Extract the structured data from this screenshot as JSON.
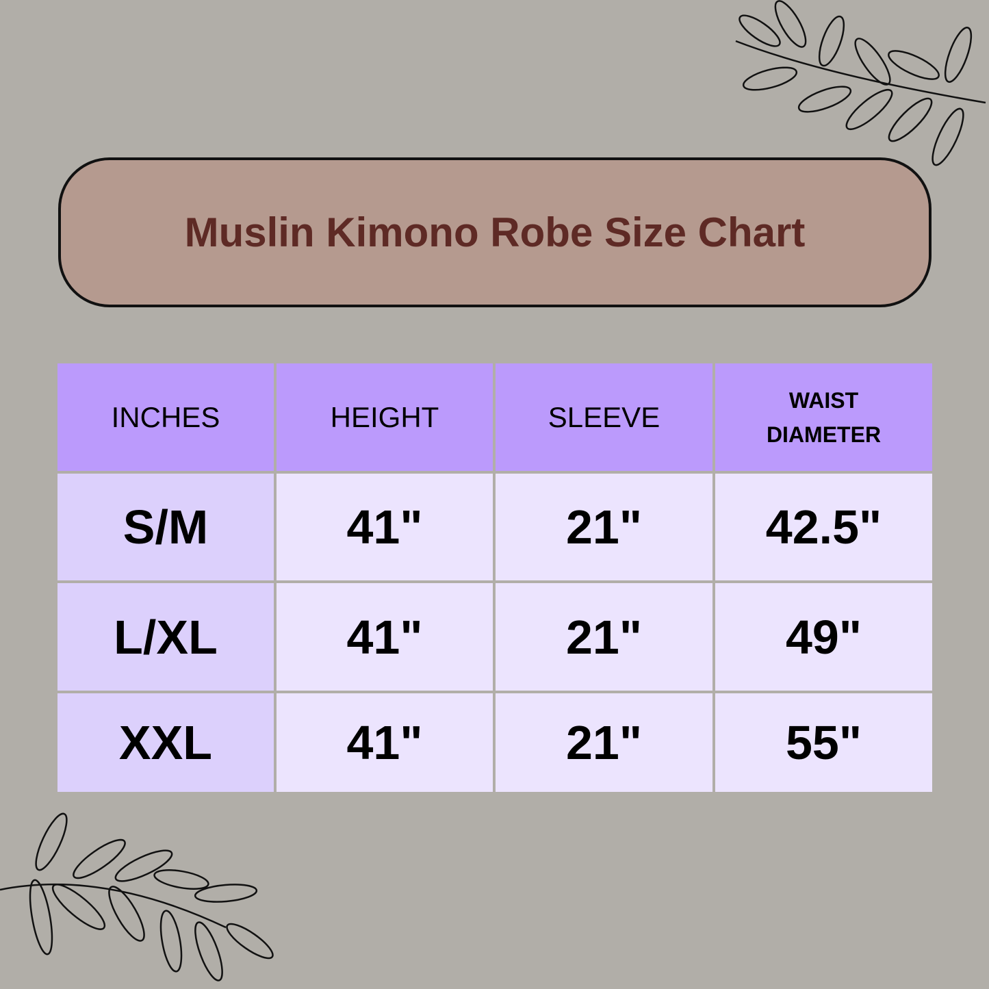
{
  "title": "Muslin Kimono Robe Size Chart",
  "table": {
    "headers": [
      "INCHES",
      "HEIGHT",
      "SLEEVE",
      "WAIST DIAMETER"
    ],
    "rows": [
      [
        "S/M",
        "41\"",
        "21\"",
        "42.5\""
      ],
      [
        "L/XL",
        "41\"",
        "21\"",
        "49\""
      ],
      [
        "XXL",
        "41\"",
        "21\"",
        "55\""
      ]
    ]
  },
  "colors": {
    "background": "#b1aea8",
    "title_fill": "#b59a8f",
    "title_text": "#5e2a25",
    "header": "#bb9afc",
    "size_column": "#dcd0fc",
    "cells": "#ece4fe"
  },
  "decorations": [
    "leaf-branch-top-right",
    "leaf-branch-bottom-left"
  ]
}
